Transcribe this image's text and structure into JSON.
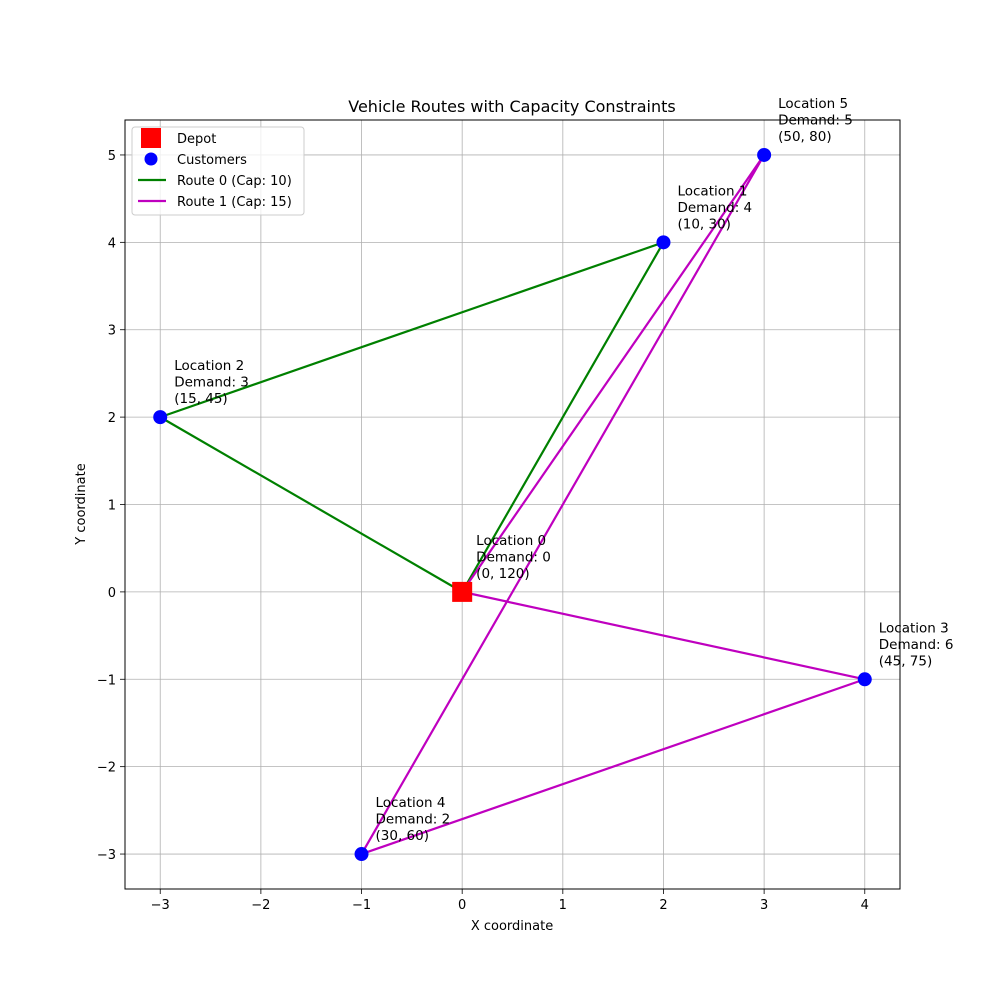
{
  "chart_data": {
    "type": "line",
    "title": "Vehicle Routes with Capacity Constraints",
    "xlabel": "X coordinate",
    "ylabel": "Y coordinate",
    "xlim": [
      -3.35,
      4.35
    ],
    "ylim": [
      -3.4,
      5.4
    ],
    "xticks": [
      -3,
      -2,
      -1,
      0,
      1,
      2,
      3,
      4
    ],
    "yticks": [
      -3,
      -2,
      -1,
      0,
      1,
      2,
      3,
      4,
      5
    ],
    "grid": true,
    "legend_position": "top-left",
    "depot": {
      "x": 0,
      "y": 0,
      "label": "Depot",
      "color": "#ff0000"
    },
    "customers_label": "Customers",
    "customers_color": "#0000ff",
    "locations": [
      {
        "id": 0,
        "x": 0,
        "y": 0,
        "lines": [
          "Location 0",
          "Demand: 0",
          "(0, 120)"
        ]
      },
      {
        "id": 1,
        "x": 2,
        "y": 4,
        "lines": [
          "Location 1",
          "Demand: 4",
          "(10, 30)"
        ]
      },
      {
        "id": 2,
        "x": -3,
        "y": 2,
        "lines": [
          "Location 2",
          "Demand: 3",
          "(15, 45)"
        ]
      },
      {
        "id": 3,
        "x": 4,
        "y": -1,
        "lines": [
          "Location 3",
          "Demand: 6",
          "(45, 75)"
        ]
      },
      {
        "id": 4,
        "x": -1,
        "y": -3,
        "lines": [
          "Location 4",
          "Demand: 2",
          "(30, 60)"
        ]
      },
      {
        "id": 5,
        "x": 3,
        "y": 5,
        "lines": [
          "Location 5",
          "Demand: 5",
          "(50, 80)"
        ]
      }
    ],
    "series": [
      {
        "name": "Route 0 (Cap: 10)",
        "color": "#008000",
        "path": [
          0,
          1,
          2,
          0
        ]
      },
      {
        "name": "Route 1 (Cap: 15)",
        "color": "#bf00bf",
        "path": [
          0,
          5,
          4,
          3,
          0,
          5
        ]
      }
    ]
  }
}
